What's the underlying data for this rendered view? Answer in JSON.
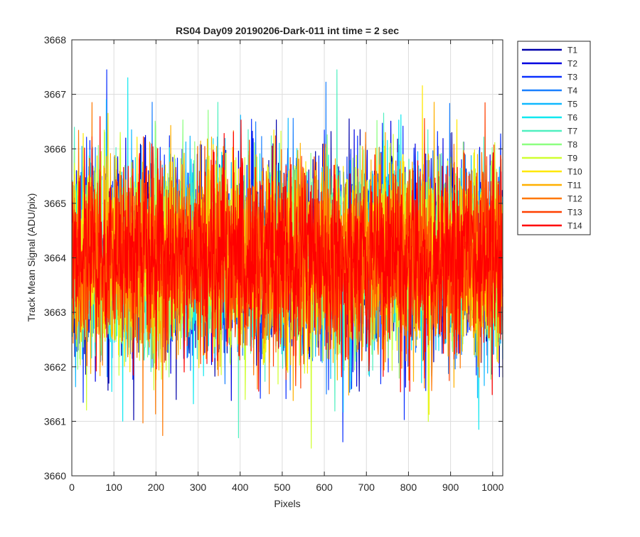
{
  "chart_data": {
    "type": "line",
    "title": "RS04 Day09 20190206-Dark-011 int time = 2 sec",
    "xlabel": "Pixels",
    "ylabel": "Track Mean Signal (ADU/pix)",
    "xlim": [
      0,
      1024
    ],
    "ylim": [
      3660,
      3668
    ],
    "grid": true,
    "legend_position": "outside top-right",
    "x_ticks": [
      0,
      100,
      200,
      300,
      400,
      500,
      600,
      700,
      800,
      900,
      1000
    ],
    "y_ticks": [
      3660,
      3661,
      3662,
      3663,
      3664,
      3665,
      3666,
      3667,
      3668
    ],
    "x": "pixel index 1..1024",
    "noise_model": {
      "mean": 3664.0,
      "std": 0.85,
      "min_observed": 3660.35,
      "max_observed": 3667.45
    },
    "series": [
      {
        "name": "T1",
        "color": "#0000aa",
        "mean": 3664.0,
        "std": 0.85
      },
      {
        "name": "T2",
        "color": "#0000e0",
        "mean": 3664.0,
        "std": 0.85
      },
      {
        "name": "T3",
        "color": "#0a30ff",
        "mean": 3664.0,
        "std": 0.85
      },
      {
        "name": "T4",
        "color": "#1a80ff",
        "mean": 3664.0,
        "std": 0.85
      },
      {
        "name": "T5",
        "color": "#10b8ff",
        "mean": 3664.0,
        "std": 0.85
      },
      {
        "name": "T6",
        "color": "#10e8f0",
        "mean": 3664.0,
        "std": 0.85
      },
      {
        "name": "T7",
        "color": "#50f0c0",
        "mean": 3664.0,
        "std": 0.85
      },
      {
        "name": "T8",
        "color": "#8cff80",
        "mean": 3664.0,
        "std": 0.85
      },
      {
        "name": "T9",
        "color": "#d0ff30",
        "mean": 3664.0,
        "std": 0.85
      },
      {
        "name": "T10",
        "color": "#ffe800",
        "mean": 3664.0,
        "std": 0.85
      },
      {
        "name": "T11",
        "color": "#ffb000",
        "mean": 3664.0,
        "std": 0.85
      },
      {
        "name": "T12",
        "color": "#ff7800",
        "mean": 3664.0,
        "std": 0.85
      },
      {
        "name": "T13",
        "color": "#ff4000",
        "mean": 3664.0,
        "std": 0.85
      },
      {
        "name": "T14",
        "color": "#ff0000",
        "mean": 3664.0,
        "std": 0.85
      }
    ]
  }
}
